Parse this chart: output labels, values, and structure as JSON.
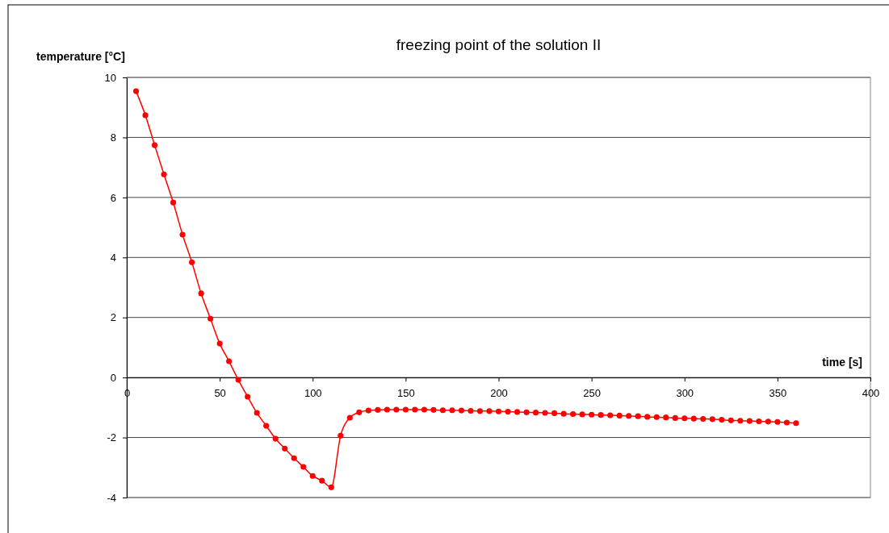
{
  "chart_data": {
    "type": "line",
    "title": "freezing point of the solution II",
    "xlabel": "time [s]",
    "ylabel": "temperature [°C]",
    "x": [
      5,
      10,
      15,
      20,
      25,
      30,
      35,
      40,
      45,
      50,
      55,
      60,
      65,
      70,
      75,
      80,
      85,
      90,
      95,
      100,
      105,
      110,
      115,
      120,
      125,
      130,
      135,
      140,
      145,
      150,
      155,
      160,
      165,
      170,
      175,
      180,
      185,
      190,
      195,
      200,
      205,
      210,
      215,
      220,
      225,
      230,
      235,
      240,
      245,
      250,
      255,
      260,
      265,
      270,
      275,
      280,
      285,
      290,
      295,
      300,
      305,
      310,
      315,
      320,
      325,
      330,
      335,
      340,
      345,
      350,
      355,
      360
    ],
    "series": [
      {
        "color": "#ff0000",
        "values": [
          9.54,
          8.74,
          7.74,
          6.77,
          5.83,
          4.76,
          3.84,
          2.8,
          1.96,
          1.13,
          0.54,
          -0.08,
          -0.64,
          -1.18,
          -1.61,
          -2.04,
          -2.37,
          -2.69,
          -2.98,
          -3.28,
          -3.44,
          -3.66,
          -1.94,
          -1.34,
          -1.16,
          -1.1,
          -1.08,
          -1.07,
          -1.07,
          -1.07,
          -1.07,
          -1.07,
          -1.08,
          -1.09,
          -1.09,
          -1.1,
          -1.11,
          -1.12,
          -1.12,
          -1.13,
          -1.14,
          -1.15,
          -1.16,
          -1.17,
          -1.18,
          -1.19,
          -1.21,
          -1.22,
          -1.23,
          -1.24,
          -1.25,
          -1.26,
          -1.27,
          -1.28,
          -1.29,
          -1.31,
          -1.32,
          -1.33,
          -1.35,
          -1.36,
          -1.37,
          -1.38,
          -1.39,
          -1.41,
          -1.43,
          -1.44,
          -1.45,
          -1.46,
          -1.47,
          -1.48,
          -1.5,
          -1.52
        ]
      }
    ],
    "xlim": [
      0,
      400
    ],
    "xticks": [
      0,
      50,
      100,
      150,
      200,
      250,
      300,
      350,
      400
    ],
    "ylim": [
      -4,
      10
    ],
    "yticks": [
      -4,
      -2,
      0,
      2,
      4,
      6,
      8,
      10
    ],
    "grid": "y",
    "legend": false,
    "marker": "circle",
    "line_style": "solid"
  }
}
